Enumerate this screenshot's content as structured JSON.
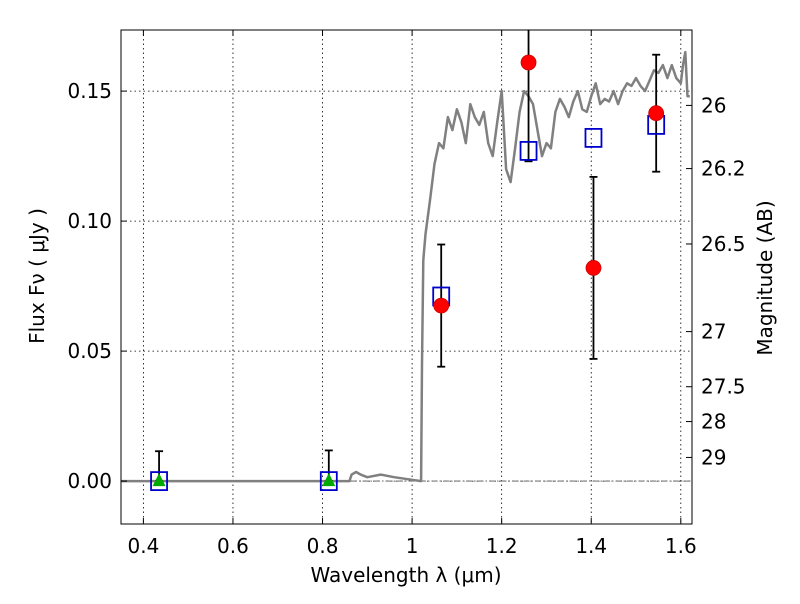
{
  "chart_data": {
    "type": "scatter",
    "xlabel": "Wavelength  λ (μm)",
    "ylabel": "Flux  Fν  ( μJy )",
    "ylabel_right": "Magnitude (AB)",
    "xlim": [
      0.35,
      1.625
    ],
    "ylim": [
      -0.0165,
      0.1735
    ],
    "grid": true,
    "x_ticks": [
      0.4,
      0.6,
      0.8,
      1.0,
      1.2,
      1.4,
      1.6
    ],
    "x_tick_labels": [
      "0.4",
      "0.6",
      "0.8",
      "1",
      "1.2",
      "1.4",
      "1.6"
    ],
    "y_ticks": [
      0.0,
      0.05,
      0.1,
      0.15
    ],
    "y_tick_labels": [
      "0.00",
      "0.05",
      "0.10",
      "0.15"
    ],
    "right_ticks": [
      {
        "label": "26",
        "flux": 0.1445
      },
      {
        "label": "26.2",
        "flux": 0.1202
      },
      {
        "label": "26.5",
        "flux": 0.0912
      },
      {
        "label": "27",
        "flux": 0.0575
      },
      {
        "label": "27.5",
        "flux": 0.0363
      },
      {
        "label": "28",
        "flux": 0.0229
      },
      {
        "label": "29",
        "flux": 0.0091
      }
    ],
    "series": [
      {
        "kind": "model",
        "color": "#808080",
        "x": [
          0.35,
          0.86,
          0.865,
          0.875,
          0.885,
          0.9,
          0.93,
          0.96,
          1.0,
          1.02,
          1.022,
          1.025,
          1.03,
          1.04,
          1.05,
          1.06,
          1.07,
          1.08,
          1.09,
          1.1,
          1.11,
          1.12,
          1.13,
          1.14,
          1.15,
          1.16,
          1.17,
          1.18,
          1.19,
          1.2,
          1.21,
          1.22,
          1.23,
          1.24,
          1.25,
          1.26,
          1.27,
          1.28,
          1.29,
          1.3,
          1.31,
          1.32,
          1.33,
          1.34,
          1.35,
          1.36,
          1.37,
          1.38,
          1.39,
          1.4,
          1.41,
          1.42,
          1.43,
          1.44,
          1.45,
          1.46,
          1.47,
          1.48,
          1.49,
          1.5,
          1.51,
          1.52,
          1.53,
          1.54,
          1.55,
          1.56,
          1.57,
          1.58,
          1.59,
          1.6,
          1.605,
          1.61,
          1.615,
          1.62
        ],
        "y": [
          0.0,
          0.0,
          0.0025,
          0.0035,
          0.0025,
          0.0015,
          0.0025,
          0.0015,
          0.0005,
          0.0,
          0.045,
          0.085,
          0.095,
          0.108,
          0.122,
          0.13,
          0.128,
          0.14,
          0.135,
          0.143,
          0.138,
          0.13,
          0.145,
          0.14,
          0.137,
          0.142,
          0.13,
          0.125,
          0.138,
          0.15,
          0.12,
          0.115,
          0.128,
          0.142,
          0.15,
          0.148,
          0.145,
          0.135,
          0.125,
          0.13,
          0.128,
          0.142,
          0.147,
          0.144,
          0.14,
          0.146,
          0.15,
          0.143,
          0.142,
          0.148,
          0.153,
          0.145,
          0.147,
          0.146,
          0.15,
          0.145,
          0.15,
          0.153,
          0.152,
          0.155,
          0.152,
          0.15,
          0.154,
          0.158,
          0.157,
          0.16,
          0.155,
          0.16,
          0.155,
          0.153,
          0.16,
          0.165,
          0.148,
          0.148
        ]
      },
      {
        "kind": "model_flux",
        "color": "#0000cc",
        "x": [
          0.435,
          0.814,
          1.065,
          1.26,
          1.405,
          1.545
        ],
        "y": [
          0.0,
          0.0,
          0.071,
          0.127,
          0.132,
          0.137
        ]
      },
      {
        "kind": "observed_detections",
        "color": "#ff0000",
        "x": [
          1.065,
          1.26,
          1.405,
          1.545
        ],
        "y": [
          0.0675,
          0.161,
          0.082,
          0.1415
        ],
        "err_low": [
          0.044,
          0.123,
          0.047,
          0.119
        ],
        "err_high": [
          0.091,
          0.175,
          0.117,
          0.164
        ]
      },
      {
        "kind": "observed_upper_limits",
        "color": "#00aa00",
        "x": [
          0.435,
          0.814
        ],
        "y": [
          0.0,
          0.0
        ],
        "err_low": [
          0.0,
          0.0
        ],
        "err_high": [
          0.0115,
          0.0118
        ]
      }
    ]
  }
}
